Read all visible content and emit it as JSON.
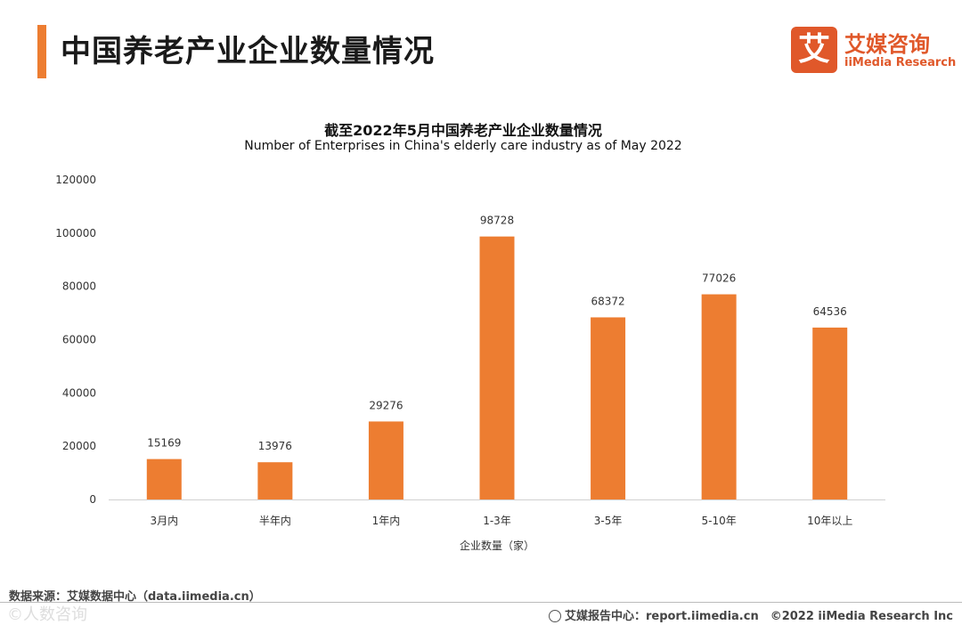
{
  "header": {
    "title": "中国养老产业企业数量情况",
    "logo_mark": "艾",
    "logo_cn": "艾媒咨询",
    "logo_en": "iiMedia Research"
  },
  "colors": {
    "accent": "#ED7D31",
    "logo": "#E0582A"
  },
  "chart_data": {
    "type": "bar",
    "title": "截至2022年5月中国养老产业企业数量情况",
    "subtitle": "Number of Enterprises in China's elderly care industry as of May 2022",
    "categories": [
      "3月内",
      "半年内",
      "1年内",
      "1-3年",
      "3-5年",
      "5-10年",
      "10年以上"
    ],
    "values": [
      15169,
      13976,
      29276,
      98728,
      68372,
      77026,
      64536
    ],
    "xlabel": "企业数量（家）",
    "ylabel": "",
    "ylim": [
      0,
      120000
    ],
    "yticks": [
      0,
      20000,
      40000,
      60000,
      80000,
      100000,
      120000
    ],
    "grid": false,
    "bar_color": "#ED7D31"
  },
  "footer": {
    "source": "数据来源：艾媒数据中心（data.iimedia.cn）",
    "report": "艾媒报告中心：report.iimedia.cn　©2022  iiMedia Research  Inc",
    "watermark": "©人数咨询"
  }
}
